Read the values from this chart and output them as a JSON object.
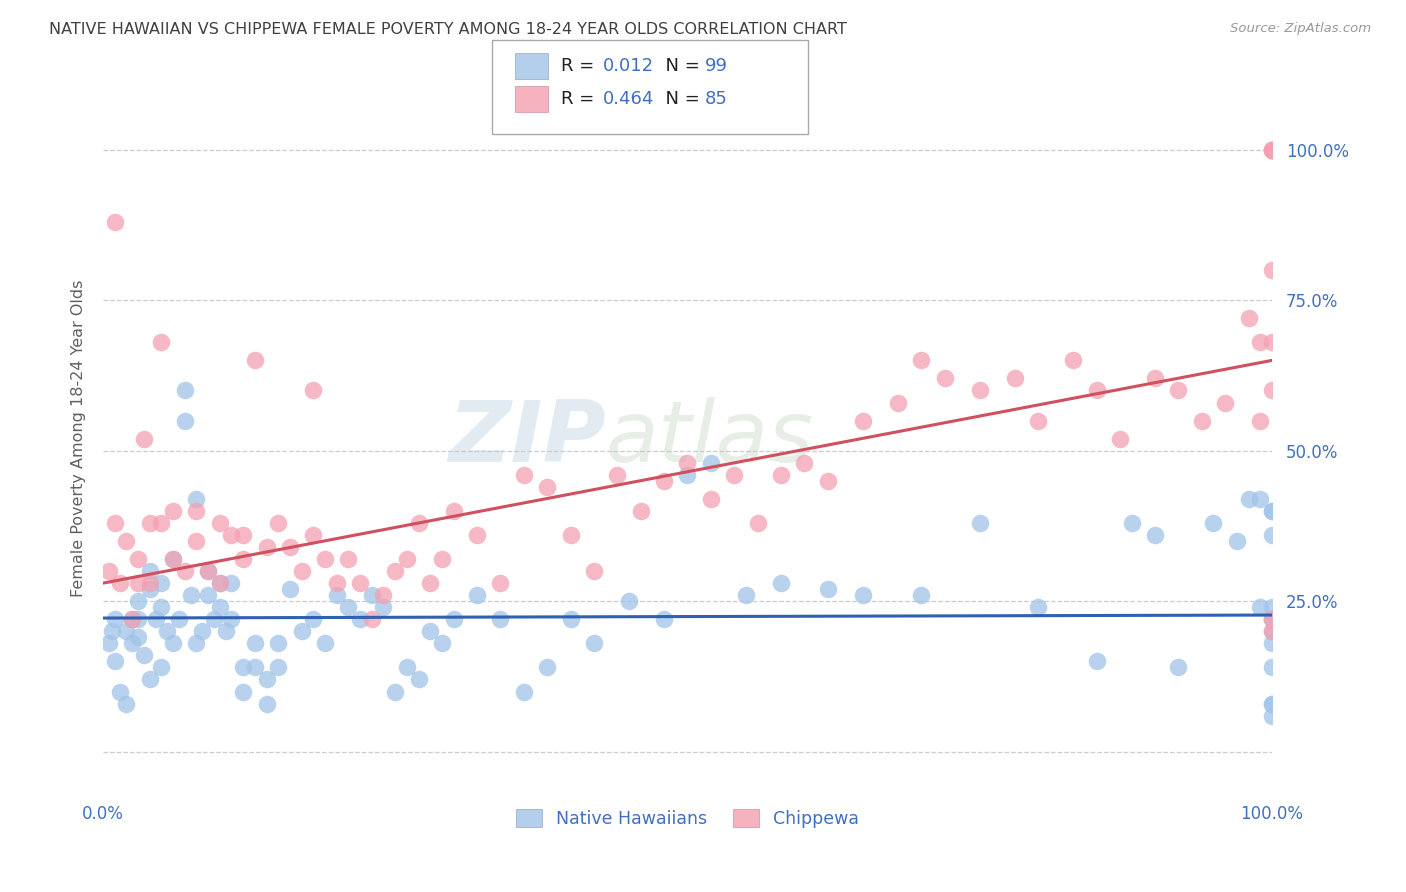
{
  "title": "NATIVE HAWAIIAN VS CHIPPEWA FEMALE POVERTY AMONG 18-24 YEAR OLDS CORRELATION CHART",
  "source": "Source: ZipAtlas.com",
  "ylabel": "Female Poverty Among 18-24 Year Olds",
  "xlim": [
    0.0,
    1.0
  ],
  "ylim": [
    -0.08,
    1.12
  ],
  "ytick_positions": [
    0.0,
    0.25,
    0.5,
    0.75,
    1.0
  ],
  "ytick_labels": [
    "",
    "25.0%",
    "50.0%",
    "75.0%",
    "100.0%"
  ],
  "watermark_zip": "ZIP",
  "watermark_atlas": "atlas",
  "blue_color": "#a0c4e8",
  "pink_color": "#f4a0b0",
  "blue_line_color": "#3060b0",
  "pink_line_color": "#d05060",
  "grid_color": "#cccccc",
  "background_color": "#ffffff",
  "title_color": "#404040",
  "axis_label_color": "#606060",
  "tick_label_color": "#4070c0",
  "blue_intercept": 0.222,
  "blue_slope": 0.005,
  "pink_intercept": 0.28,
  "pink_slope": 0.37,
  "blue_scatter_x": [
    0.005,
    0.008,
    0.01,
    0.01,
    0.015,
    0.02,
    0.02,
    0.025,
    0.025,
    0.03,
    0.03,
    0.03,
    0.035,
    0.04,
    0.04,
    0.04,
    0.045,
    0.05,
    0.05,
    0.05,
    0.055,
    0.06,
    0.06,
    0.065,
    0.07,
    0.07,
    0.075,
    0.08,
    0.08,
    0.085,
    0.09,
    0.09,
    0.095,
    0.1,
    0.1,
    0.105,
    0.11,
    0.11,
    0.12,
    0.12,
    0.13,
    0.13,
    0.14,
    0.14,
    0.15,
    0.15,
    0.16,
    0.17,
    0.18,
    0.19,
    0.2,
    0.21,
    0.22,
    0.23,
    0.24,
    0.25,
    0.26,
    0.27,
    0.28,
    0.29,
    0.3,
    0.32,
    0.34,
    0.36,
    0.38,
    0.4,
    0.42,
    0.45,
    0.48,
    0.5,
    0.52,
    0.55,
    0.58,
    0.62,
    0.65,
    0.7,
    0.75,
    0.8,
    0.85,
    0.88,
    0.9,
    0.92,
    0.95,
    0.97,
    0.98,
    0.99,
    0.99,
    1.0,
    1.0,
    1.0,
    1.0,
    1.0,
    1.0,
    1.0,
    1.0,
    1.0,
    1.0,
    1.0,
    1.0
  ],
  "blue_scatter_y": [
    0.18,
    0.2,
    0.15,
    0.22,
    0.1,
    0.08,
    0.2,
    0.18,
    0.22,
    0.25,
    0.22,
    0.19,
    0.16,
    0.3,
    0.27,
    0.12,
    0.22,
    0.28,
    0.24,
    0.14,
    0.2,
    0.32,
    0.18,
    0.22,
    0.6,
    0.55,
    0.26,
    0.42,
    0.18,
    0.2,
    0.3,
    0.26,
    0.22,
    0.28,
    0.24,
    0.2,
    0.28,
    0.22,
    0.14,
    0.1,
    0.18,
    0.14,
    0.12,
    0.08,
    0.18,
    0.14,
    0.27,
    0.2,
    0.22,
    0.18,
    0.26,
    0.24,
    0.22,
    0.26,
    0.24,
    0.1,
    0.14,
    0.12,
    0.2,
    0.18,
    0.22,
    0.26,
    0.22,
    0.1,
    0.14,
    0.22,
    0.18,
    0.25,
    0.22,
    0.46,
    0.48,
    0.26,
    0.28,
    0.27,
    0.26,
    0.26,
    0.38,
    0.24,
    0.15,
    0.38,
    0.36,
    0.14,
    0.38,
    0.35,
    0.42,
    0.24,
    0.42,
    0.2,
    0.4,
    0.22,
    0.18,
    0.22,
    0.4,
    0.36,
    0.24,
    0.08,
    0.06,
    0.14,
    0.08
  ],
  "pink_scatter_x": [
    0.005,
    0.01,
    0.01,
    0.015,
    0.02,
    0.025,
    0.03,
    0.03,
    0.035,
    0.04,
    0.04,
    0.05,
    0.05,
    0.06,
    0.06,
    0.07,
    0.08,
    0.08,
    0.09,
    0.1,
    0.1,
    0.11,
    0.12,
    0.12,
    0.13,
    0.14,
    0.15,
    0.16,
    0.17,
    0.18,
    0.18,
    0.19,
    0.2,
    0.21,
    0.22,
    0.23,
    0.24,
    0.25,
    0.26,
    0.27,
    0.28,
    0.29,
    0.3,
    0.32,
    0.34,
    0.36,
    0.38,
    0.4,
    0.42,
    0.44,
    0.46,
    0.48,
    0.5,
    0.52,
    0.54,
    0.56,
    0.58,
    0.6,
    0.62,
    0.65,
    0.68,
    0.7,
    0.72,
    0.75,
    0.78,
    0.8,
    0.83,
    0.85,
    0.87,
    0.9,
    0.92,
    0.94,
    0.96,
    0.98,
    0.99,
    0.99,
    1.0,
    1.0,
    1.0,
    1.0,
    1.0,
    1.0,
    1.0,
    1.0,
    1.0
  ],
  "pink_scatter_y": [
    0.3,
    0.38,
    0.88,
    0.28,
    0.35,
    0.22,
    0.32,
    0.28,
    0.52,
    0.38,
    0.28,
    0.68,
    0.38,
    0.32,
    0.4,
    0.3,
    0.4,
    0.35,
    0.3,
    0.28,
    0.38,
    0.36,
    0.36,
    0.32,
    0.65,
    0.34,
    0.38,
    0.34,
    0.3,
    0.6,
    0.36,
    0.32,
    0.28,
    0.32,
    0.28,
    0.22,
    0.26,
    0.3,
    0.32,
    0.38,
    0.28,
    0.32,
    0.4,
    0.36,
    0.28,
    0.46,
    0.44,
    0.36,
    0.3,
    0.46,
    0.4,
    0.45,
    0.48,
    0.42,
    0.46,
    0.38,
    0.46,
    0.48,
    0.45,
    0.55,
    0.58,
    0.65,
    0.62,
    0.6,
    0.62,
    0.55,
    0.65,
    0.6,
    0.52,
    0.62,
    0.6,
    0.55,
    0.58,
    0.72,
    0.68,
    0.55,
    0.6,
    1.0,
    1.0,
    0.8,
    0.68,
    1.0,
    1.0,
    0.2,
    0.22
  ]
}
